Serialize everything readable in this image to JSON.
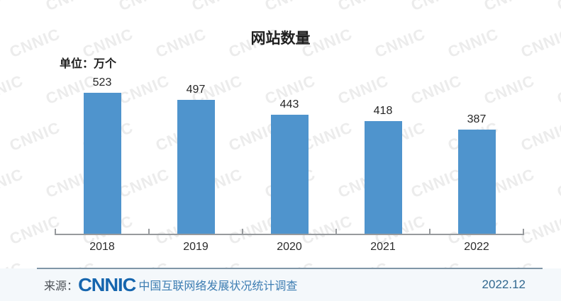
{
  "watermark": {
    "text": "CNNIC"
  },
  "chart_data": {
    "type": "bar",
    "title": "网站数量",
    "unit_label": "单位：万个",
    "categories": [
      "2018",
      "2019",
      "2020",
      "2021",
      "2022"
    ],
    "values": [
      523,
      497,
      443,
      418,
      387
    ],
    "unit": "万个",
    "ylim": [
      0,
      600
    ],
    "bar_color": "#4f94cd",
    "data_labels": true,
    "grid": false,
    "legend": false
  },
  "footer": {
    "source_prefix": "来源：",
    "logo_text": "CNNIC",
    "source_text": "中国互联网络发展状况统计调查",
    "date": "2022.12",
    "logo_color": "#1565ae",
    "text_color": "#3d7db2",
    "band_color": "#f4f8fb"
  }
}
